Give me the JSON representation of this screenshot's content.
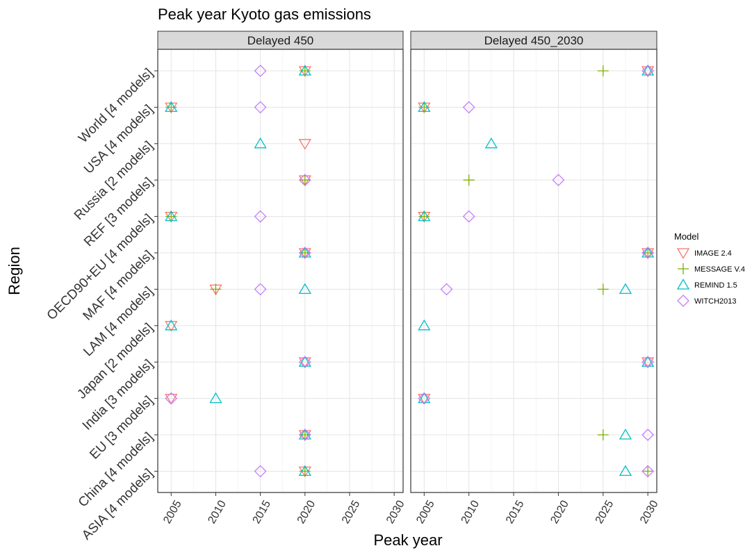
{
  "chart_data": {
    "type": "scatter",
    "title": "Peak year Kyoto gas emissions",
    "xlabel": "Peak year",
    "ylabel": "Region",
    "xlim": [
      2003.5,
      2031
    ],
    "x_ticks": [
      2005,
      2010,
      2015,
      2020,
      2025,
      2030
    ],
    "grid": true,
    "regions": [
      "World [4 models]",
      "USA [4 models]",
      "Russia [2 models]",
      "REF [3 models]",
      "OECD90+EU [4 models]",
      "MAF [4 models]",
      "LAM [4 models]",
      "Japan [2 models]",
      "India [3 models]",
      "EU [3 models]",
      "China [4 models]",
      "ASIA [4 models]"
    ],
    "panels": [
      {
        "name": "Delayed 450",
        "points": [
          {
            "region": "World [4 models]",
            "model": "IMAGE 2.4",
            "x": 2020
          },
          {
            "region": "World [4 models]",
            "model": "MESSAGE V.4",
            "x": 2020
          },
          {
            "region": "World [4 models]",
            "model": "REMIND 1.5",
            "x": 2020
          },
          {
            "region": "World [4 models]",
            "model": "WITCH2013",
            "x": 2015
          },
          {
            "region": "USA [4 models]",
            "model": "IMAGE 2.4",
            "x": 2005
          },
          {
            "region": "USA [4 models]",
            "model": "MESSAGE V.4",
            "x": 2005
          },
          {
            "region": "USA [4 models]",
            "model": "REMIND 1.5",
            "x": 2005
          },
          {
            "region": "USA [4 models]",
            "model": "WITCH2013",
            "x": 2015
          },
          {
            "region": "Russia [2 models]",
            "model": "IMAGE 2.4",
            "x": 2020
          },
          {
            "region": "Russia [2 models]",
            "model": "REMIND 1.5",
            "x": 2015
          },
          {
            "region": "REF [3 models]",
            "model": "IMAGE 2.4",
            "x": 2020
          },
          {
            "region": "REF [3 models]",
            "model": "MESSAGE V.4",
            "x": 2020
          },
          {
            "region": "REF [3 models]",
            "model": "WITCH2013",
            "x": 2020
          },
          {
            "region": "OECD90+EU [4 models]",
            "model": "IMAGE 2.4",
            "x": 2005
          },
          {
            "region": "OECD90+EU [4 models]",
            "model": "MESSAGE V.4",
            "x": 2005
          },
          {
            "region": "OECD90+EU [4 models]",
            "model": "REMIND 1.5",
            "x": 2005
          },
          {
            "region": "OECD90+EU [4 models]",
            "model": "WITCH2013",
            "x": 2015
          },
          {
            "region": "MAF [4 models]",
            "model": "IMAGE 2.4",
            "x": 2020
          },
          {
            "region": "MAF [4 models]",
            "model": "MESSAGE V.4",
            "x": 2020
          },
          {
            "region": "MAF [4 models]",
            "model": "REMIND 1.5",
            "x": 2020
          },
          {
            "region": "MAF [4 models]",
            "model": "WITCH2013",
            "x": 2020
          },
          {
            "region": "LAM [4 models]",
            "model": "IMAGE 2.4",
            "x": 2010
          },
          {
            "region": "LAM [4 models]",
            "model": "MESSAGE V.4",
            "x": 2010
          },
          {
            "region": "LAM [4 models]",
            "model": "REMIND 1.5",
            "x": 2020
          },
          {
            "region": "LAM [4 models]",
            "model": "WITCH2013",
            "x": 2015
          },
          {
            "region": "Japan [2 models]",
            "model": "IMAGE 2.4",
            "x": 2005
          },
          {
            "region": "Japan [2 models]",
            "model": "REMIND 1.5",
            "x": 2005
          },
          {
            "region": "India [3 models]",
            "model": "IMAGE 2.4",
            "x": 2020
          },
          {
            "region": "India [3 models]",
            "model": "REMIND 1.5",
            "x": 2020
          },
          {
            "region": "India [3 models]",
            "model": "WITCH2013",
            "x": 2020
          },
          {
            "region": "EU [3 models]",
            "model": "IMAGE 2.4",
            "x": 2005
          },
          {
            "region": "EU [3 models]",
            "model": "REMIND 1.5",
            "x": 2010
          },
          {
            "region": "EU [3 models]",
            "model": "WITCH2013",
            "x": 2005
          },
          {
            "region": "China [4 models]",
            "model": "IMAGE 2.4",
            "x": 2020
          },
          {
            "region": "China [4 models]",
            "model": "MESSAGE V.4",
            "x": 2020
          },
          {
            "region": "China [4 models]",
            "model": "REMIND 1.5",
            "x": 2020
          },
          {
            "region": "China [4 models]",
            "model": "WITCH2013",
            "x": 2020
          },
          {
            "region": "ASIA [4 models]",
            "model": "IMAGE 2.4",
            "x": 2020
          },
          {
            "region": "ASIA [4 models]",
            "model": "MESSAGE V.4",
            "x": 2020
          },
          {
            "region": "ASIA [4 models]",
            "model": "REMIND 1.5",
            "x": 2020
          },
          {
            "region": "ASIA [4 models]",
            "model": "WITCH2013",
            "x": 2015
          }
        ]
      },
      {
        "name": "Delayed 450_2030",
        "points": [
          {
            "region": "World [4 models]",
            "model": "IMAGE 2.4",
            "x": 2030
          },
          {
            "region": "World [4 models]",
            "model": "MESSAGE V.4",
            "x": 2025
          },
          {
            "region": "World [4 models]",
            "model": "REMIND 1.5",
            "x": 2030
          },
          {
            "region": "World [4 models]",
            "model": "WITCH2013",
            "x": 2030
          },
          {
            "region": "USA [4 models]",
            "model": "IMAGE 2.4",
            "x": 2005
          },
          {
            "region": "USA [4 models]",
            "model": "MESSAGE V.4",
            "x": 2005
          },
          {
            "region": "USA [4 models]",
            "model": "REMIND 1.5",
            "x": 2005
          },
          {
            "region": "USA [4 models]",
            "model": "WITCH2013",
            "x": 2010
          },
          {
            "region": "Russia [2 models]",
            "model": "REMIND 1.5",
            "x": 2012.5
          },
          {
            "region": "REF [3 models]",
            "model": "MESSAGE V.4",
            "x": 2010
          },
          {
            "region": "REF [3 models]",
            "model": "WITCH2013",
            "x": 2020
          },
          {
            "region": "OECD90+EU [4 models]",
            "model": "IMAGE 2.4",
            "x": 2005
          },
          {
            "region": "OECD90+EU [4 models]",
            "model": "MESSAGE V.4",
            "x": 2005
          },
          {
            "region": "OECD90+EU [4 models]",
            "model": "REMIND 1.5",
            "x": 2005
          },
          {
            "region": "OECD90+EU [4 models]",
            "model": "WITCH2013",
            "x": 2010
          },
          {
            "region": "MAF [4 models]",
            "model": "IMAGE 2.4",
            "x": 2030
          },
          {
            "region": "MAF [4 models]",
            "model": "MESSAGE V.4",
            "x": 2030
          },
          {
            "region": "MAF [4 models]",
            "model": "REMIND 1.5",
            "x": 2030
          },
          {
            "region": "MAF [4 models]",
            "model": "WITCH2013",
            "x": 2030
          },
          {
            "region": "LAM [4 models]",
            "model": "MESSAGE V.4",
            "x": 2025
          },
          {
            "region": "LAM [4 models]",
            "model": "REMIND 1.5",
            "x": 2027.5
          },
          {
            "region": "LAM [4 models]",
            "model": "WITCH2013",
            "x": 2007.5
          },
          {
            "region": "Japan [2 models]",
            "model": "REMIND 1.5",
            "x": 2005
          },
          {
            "region": "India [3 models]",
            "model": "IMAGE 2.4",
            "x": 2030
          },
          {
            "region": "India [3 models]",
            "model": "REMIND 1.5",
            "x": 2030
          },
          {
            "region": "India [3 models]",
            "model": "WITCH2013",
            "x": 2030
          },
          {
            "region": "EU [3 models]",
            "model": "IMAGE 2.4",
            "x": 2005
          },
          {
            "region": "EU [3 models]",
            "model": "REMIND 1.5",
            "x": 2005
          },
          {
            "region": "EU [3 models]",
            "model": "WITCH2013",
            "x": 2005
          },
          {
            "region": "China [4 models]",
            "model": "MESSAGE V.4",
            "x": 2025
          },
          {
            "region": "China [4 models]",
            "model": "REMIND 1.5",
            "x": 2027.5
          },
          {
            "region": "China [4 models]",
            "model": "WITCH2013",
            "x": 2030
          },
          {
            "region": "ASIA [4 models]",
            "model": "MESSAGE V.4",
            "x": 2030
          },
          {
            "region": "ASIA [4 models]",
            "model": "REMIND 1.5",
            "x": 2027.5
          },
          {
            "region": "ASIA [4 models]",
            "model": "WITCH2013",
            "x": 2030
          }
        ]
      }
    ],
    "legend": {
      "title": "Model",
      "position": "right",
      "entries": [
        {
          "model": "IMAGE 2.4",
          "shape": "triangle-down-icon",
          "color": "#F8766D"
        },
        {
          "model": "MESSAGE V.4",
          "shape": "plus-icon",
          "color": "#7CAE00"
        },
        {
          "model": "REMIND 1.5",
          "shape": "triangle-up-icon",
          "color": "#00BFC4"
        },
        {
          "model": "WITCH2013",
          "shape": "diamond-icon",
          "color": "#C77CFF"
        }
      ]
    }
  }
}
